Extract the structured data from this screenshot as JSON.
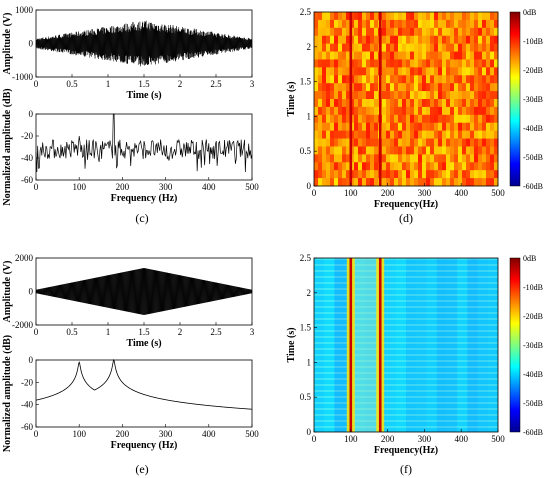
{
  "captions": {
    "c": "(c)",
    "d": "(d)",
    "e": "(e)",
    "f": "(f)"
  },
  "colors": {
    "signal": "#000000",
    "hot_band": "#c80000"
  },
  "chart_data": [
    {
      "id": "c-time",
      "type": "line",
      "xlabel": "Time (s)",
      "ylabel": "Amplitude (V)",
      "xlim": [
        0,
        3
      ],
      "ylim": [
        -1000,
        1000
      ],
      "xticks": [
        "0",
        "0.5",
        "1",
        "1.5",
        "2",
        "2.5",
        "3"
      ],
      "yticks": [
        "1000",
        "0",
        "-1000"
      ],
      "envelope": {
        "x": [
          0,
          1.5,
          3
        ],
        "y": [
          150,
          700,
          150
        ]
      }
    },
    {
      "id": "c-spectrum",
      "type": "line",
      "xlabel": "Frequency (Hz)",
      "ylabel": "Normalized amplitude (dB)",
      "xlim": [
        0,
        500
      ],
      "ylim": [
        -60,
        0
      ],
      "xticks": [
        "0",
        "100",
        "200",
        "300",
        "400",
        "500"
      ],
      "yticks": [
        "0",
        "-20",
        "-40",
        "-60"
      ],
      "noise_floor_db": -32,
      "peaks": [
        {
          "x": 100,
          "y": -20
        },
        {
          "x": 180,
          "y": 0
        }
      ]
    },
    {
      "id": "d-tf",
      "type": "heatmap",
      "xlabel": "Frequency(Hz)",
      "ylabel": "Time (s)",
      "xlim": [
        0,
        500
      ],
      "ylim": [
        0,
        2.5
      ],
      "xticks": [
        "0",
        "100",
        "200",
        "300",
        "400",
        "500"
      ],
      "yticks": [
        "0",
        "0.5",
        "1",
        "1.5",
        "2",
        "2.5"
      ],
      "lines_hz": [
        100,
        180
      ],
      "background_db": -15,
      "colorbar": [
        "0dB",
        "-10dB",
        "-20dB",
        "-30dB",
        "-40dB",
        "-50dB",
        "-60dB"
      ]
    },
    {
      "id": "e-time",
      "type": "line",
      "xlabel": "Time (s)",
      "ylabel": "Amplitude (V)",
      "xlim": [
        0,
        3
      ],
      "ylim": [
        -2000,
        2000
      ],
      "xticks": [
        "0",
        "0.5",
        "1",
        "1.5",
        "2",
        "2.5",
        "3"
      ],
      "yticks": [
        "2000",
        "0",
        "-2000"
      ],
      "envelope": {
        "x": [
          0,
          1.5,
          3
        ],
        "y": [
          100,
          1400,
          100
        ]
      }
    },
    {
      "id": "e-spectrum",
      "type": "line",
      "xlabel": "Frequency (Hz)",
      "ylabel": "Normalized amplitude (dB)",
      "xlim": [
        0,
        500
      ],
      "ylim": [
        -60,
        0
      ],
      "xticks": [
        "0",
        "100",
        "200",
        "300",
        "400",
        "500"
      ],
      "yticks": [
        "0",
        "-20",
        "-40",
        "-60"
      ],
      "peaks": [
        {
          "x": 100,
          "y": -2
        },
        {
          "x": 180,
          "y": 0
        }
      ]
    },
    {
      "id": "f-tf",
      "type": "heatmap",
      "xlabel": "Frequency(Hz)",
      "ylabel": "Time (s)",
      "xlim": [
        0,
        500
      ],
      "ylim": [
        0,
        2.5
      ],
      "xticks": [
        "0",
        "100",
        "200",
        "300",
        "400",
        "500"
      ],
      "yticks": [
        "0",
        "0.5",
        "1",
        "1.5",
        "2",
        "2.5"
      ],
      "lines_hz": [
        100,
        180
      ],
      "background_db": -40,
      "colorbar": [
        "0dB",
        "-10dB",
        "-20dB",
        "-30dB",
        "-40dB",
        "-50dB",
        "-60dB"
      ]
    }
  ]
}
